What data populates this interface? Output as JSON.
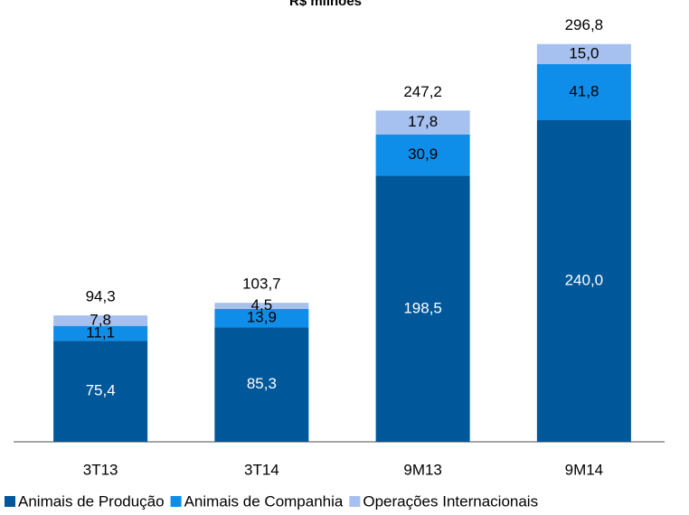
{
  "chart_data": {
    "type": "stacked_bar",
    "title": "R$ milhões",
    "categories": [
      "3T13",
      "3T14",
      "9M13",
      "9M14"
    ],
    "series": [
      {
        "name": "Animais de Produção",
        "color": "#00579a",
        "values": [
          75.4,
          85.3,
          198.5,
          240.0
        ],
        "value_labels": [
          "75,4",
          "85,3",
          "198,5",
          "240,0"
        ]
      },
      {
        "name": "Animais de Companhia",
        "color": "#0f8ee9",
        "values": [
          11.1,
          13.9,
          30.9,
          41.8
        ],
        "value_labels": [
          "11,1",
          "13,9",
          "30,9",
          "41,8"
        ]
      },
      {
        "name": "Operações Internacionais",
        "color": "#a6c0f0",
        "values": [
          7.8,
          4.5,
          17.8,
          15.0
        ],
        "value_labels": [
          "7,8",
          "4,5",
          "17,8",
          "15,0"
        ]
      }
    ],
    "totals": [
      94.3,
      103.7,
      247.2,
      296.8
    ],
    "total_labels": [
      "94,3",
      "103,7",
      "247,2",
      "296,8"
    ],
    "ylim": [
      0,
      300
    ]
  }
}
